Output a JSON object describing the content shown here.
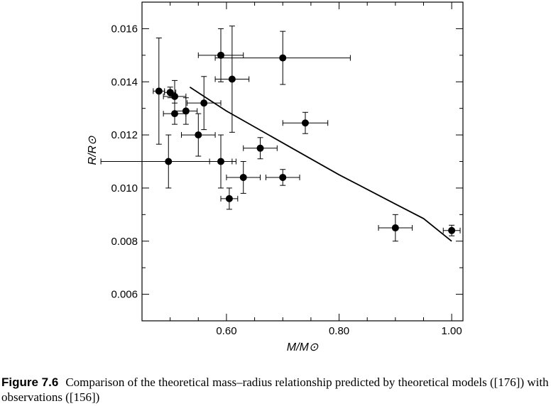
{
  "chart_data": {
    "type": "scatter",
    "xlabel": "M/M⊙",
    "ylabel": "R/R⊙",
    "xlim": [
      0.45,
      1.02
    ],
    "ylim": [
      0.005,
      0.017
    ],
    "x_ticks": [
      0.6,
      0.8,
      1.0
    ],
    "x_tick_labels": [
      "0.60",
      "0.80",
      "1.00"
    ],
    "y_ticks": [
      0.006,
      0.008,
      0.01,
      0.012,
      0.014,
      0.016
    ],
    "y_tick_labels": [
      "0.006",
      "0.008",
      "0.010",
      "0.012",
      "0.014",
      "0.016"
    ],
    "grid": false,
    "observations": [
      {
        "x": 0.48,
        "y": 0.01365,
        "xerr": 0.01,
        "yerr": 0.002
      },
      {
        "x": 0.5,
        "y": 0.0136,
        "xerr": 0.01,
        "yerr": 0.0002
      },
      {
        "x": 0.508,
        "y": 0.01345,
        "xerr": 0.02,
        "yerr": 0.0006
      },
      {
        "x": 0.508,
        "y": 0.0128,
        "xerr": 0.02,
        "yerr": 0.0004
      },
      {
        "x": 0.528,
        "y": 0.0129,
        "xerr": 0.02,
        "yerr": 0.0005
      },
      {
        "x": 0.56,
        "y": 0.0132,
        "xerr": 0.03,
        "yerr": 0.001
      },
      {
        "x": 0.55,
        "y": 0.012,
        "xerr": 0.03,
        "yerr": 0.0008
      },
      {
        "x": 0.497,
        "y": 0.011,
        "xerr": 0.12,
        "yerr": 0.001
      },
      {
        "x": 0.59,
        "y": 0.015,
        "xerr": 0.04,
        "yerr": 0.001
      },
      {
        "x": 0.61,
        "y": 0.0141,
        "xerr": 0.03,
        "yerr": 0.002
      },
      {
        "x": 0.7,
        "y": 0.0149,
        "xerr": 0.12,
        "yerr": 0.001
      },
      {
        "x": 0.74,
        "y": 0.01245,
        "xerr": 0.04,
        "yerr": 0.0004
      },
      {
        "x": 0.66,
        "y": 0.0115,
        "xerr": 0.03,
        "yerr": 0.0004
      },
      {
        "x": 0.59,
        "y": 0.011,
        "xerr": 0.02,
        "yerr": 0.001
      },
      {
        "x": 0.63,
        "y": 0.0104,
        "xerr": 0.03,
        "yerr": 0.0006
      },
      {
        "x": 0.605,
        "y": 0.0096,
        "xerr": 0.015,
        "yerr": 0.0004
      },
      {
        "x": 0.7,
        "y": 0.0104,
        "xerr": 0.03,
        "yerr": 0.0003
      },
      {
        "x": 0.9,
        "y": 0.0085,
        "xerr": 0.03,
        "yerr": 0.0005
      },
      {
        "x": 1.0,
        "y": 0.0084,
        "xerr": 0.015,
        "yerr": 0.0002
      }
    ],
    "theory_curve": {
      "x": [
        0.535,
        0.56,
        0.6,
        0.65,
        0.7,
        0.75,
        0.8,
        0.85,
        0.9,
        0.95,
        1.0
      ],
      "y": [
        0.0138,
        0.01345,
        0.0129,
        0.0123,
        0.0117,
        0.0111,
        0.0105,
        0.00995,
        0.0094,
        0.00885,
        0.008
      ]
    }
  },
  "caption": {
    "label": "Figure 7.6",
    "text": "Comparison of the theoretical mass–radius relationship predicted by theoretical models ([176]) with observations ([156])"
  }
}
